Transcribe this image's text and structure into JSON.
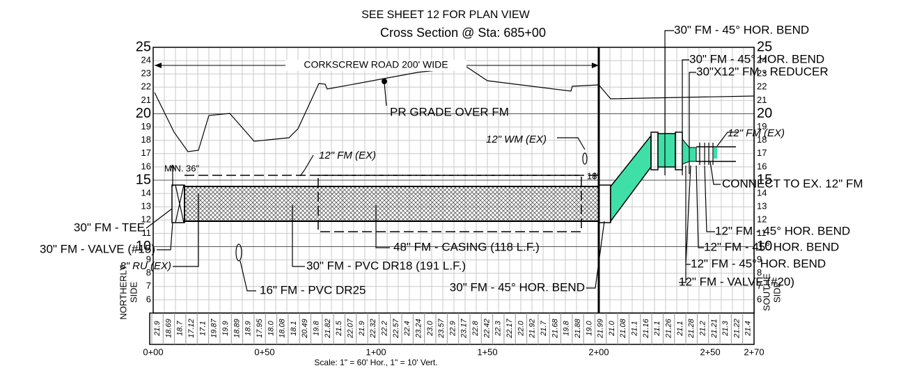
{
  "header": {
    "note": "SEE SHEET 12 FOR PLAN VIEW",
    "title": "Cross Section @ Sta: 685+00"
  },
  "road_label": "CORKSCREW ROAD 200' WIDE",
  "elevations": [
    25,
    24,
    23,
    22,
    21,
    20,
    19,
    18,
    17,
    16,
    15,
    14,
    13,
    12,
    11,
    10,
    9,
    8,
    7,
    6
  ],
  "stations": [
    "0+00",
    "0+50",
    "1+00",
    "1+50",
    "2+00",
    "2+50",
    "2+70"
  ],
  "callouts": [
    "PR GRADE OVER FM",
    "12\" FM (EX)",
    "MIN. 36\"",
    "12\" WM (EX)",
    "18\"",
    "30\" FM - 45° HOR. BEND",
    "30\" FM - 45° HOR. BEND",
    "30\"X12\" FM - REDUCER",
    "12\" FM (EX)",
    "CONNECT TO EX. 12\" FM",
    "12\" FM - 45° HOR. BEND",
    "12\" FM - 45° HOR. BEND",
    "12\" FM - 45° HOR. BEND",
    "12\" FM - VALVE (#20)",
    "30\" FM - TEE",
    "30\" FM - VALVE (#15)",
    "8\" RU (EX)",
    "48\" FM - CASING (118 L.F.)",
    "30\" FM - PVC DR18 (191 L.F.)",
    "16\" FM - PVC DR25",
    "30\" FM - 45° HOR. BEND"
  ],
  "side_labels": {
    "left": [
      "NORTHERLY",
      "SIDE"
    ],
    "right": [
      "SOUTHE",
      "SIDE"
    ]
  },
  "profile_values": [
    "21.9",
    "18.69",
    "18.7",
    "17.12",
    "17.1",
    "19.87",
    "19.9",
    "18.89",
    "18.9",
    "17.95",
    "18.0",
    "18.08",
    "18.1",
    "20.49",
    "19.8",
    "21.82",
    "21.5",
    "22.07",
    "21.9",
    "22.32",
    "22.2",
    "22.57",
    "22.4",
    "23.24",
    "23.0",
    "23.57",
    "22.9",
    "23.17",
    "22.8",
    "22.42",
    "22.3",
    "22.17",
    "22.0",
    "21.92",
    "21.7",
    "21.68",
    "19.8",
    "21.88",
    "19.0",
    "21.99",
    "21.0",
    "21.08",
    "21.1",
    "21.16",
    "21.1",
    "21.26",
    "21.1",
    "21.28",
    "21.2",
    "21.21",
    "21.3",
    "21.22",
    "21.4"
  ],
  "scale": "Scale: 1\" = 60' Hor., 1\" = 10' Vert."
}
